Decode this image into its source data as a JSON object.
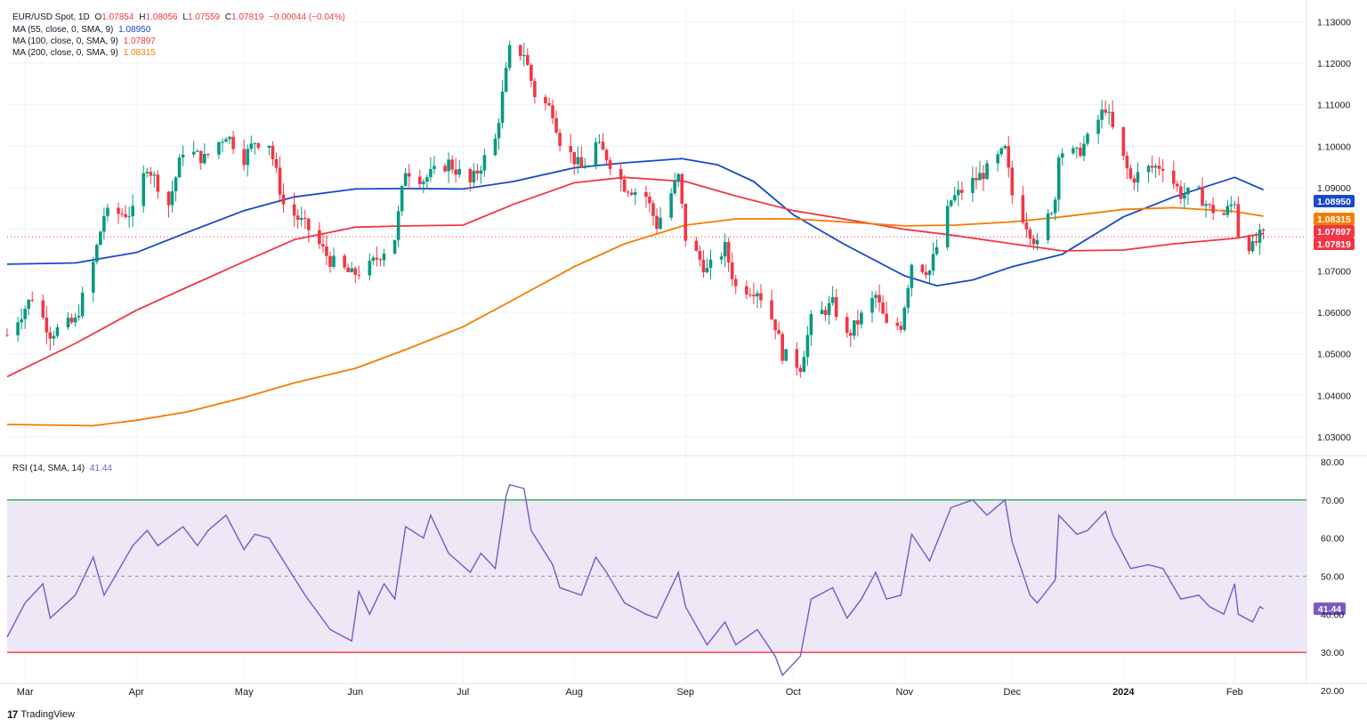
{
  "header": {
    "symbol": "EUR/USD Spot, 1D",
    "o_label": "O",
    "o_value": "1.07854",
    "h_label": "H",
    "h_value": "1.08056",
    "l_label": "L",
    "l_value": "1.07559",
    "c_label": "C",
    "c_value": "1.07819",
    "change": "−0.00044 (−0.04%)"
  },
  "indicators": [
    {
      "label": "MA (55, close, 0, SMA, 9)",
      "value": "1.08950",
      "color": "#1848cc"
    },
    {
      "label": "MA (100, close, 0, SMA, 9)",
      "value": "1.07897",
      "color": "#f23645"
    },
    {
      "label": "MA (200, close, 0, SMA, 9)",
      "value": "1.08315",
      "color": "#f57c00"
    }
  ],
  "rsi": {
    "label": "RSI (14, SMA, 14)",
    "value": "41.44",
    "color": "#7e57c2"
  },
  "branding": {
    "name": "TradingView"
  },
  "colors": {
    "up": "#089981",
    "down": "#f23645",
    "grid": "#f0f3fa",
    "rsi_band": "#ede7f6"
  },
  "chart_data": [
    {
      "type": "candlestick",
      "title": "EUR/USD Spot, 1D",
      "y_ticks": [
        "1.03000",
        "1.04000",
        "1.05000",
        "1.06000",
        "1.07000",
        "1.08000",
        "1.09000",
        "1.10000",
        "1.11000",
        "1.12000",
        "1.13000"
      ],
      "ylim": [
        1.0255,
        1.1335
      ],
      "x_ticks": [
        "Mar",
        "Apr",
        "May",
        "Jun",
        "Jul",
        "Aug",
        "Sep",
        "Oct",
        "Nov",
        "Dec",
        "2024",
        "Feb"
      ],
      "x_tick_dates": [
        "2023-03-01",
        "2023-04-01",
        "2023-05-01",
        "2023-06-01",
        "2023-07-01",
        "2023-08-01",
        "2023-09-01",
        "2023-10-01",
        "2023-11-01",
        "2023-12-01",
        "2024-01-01",
        "2024-02-01"
      ],
      "xlim": [
        "2023-02-24",
        "2024-02-21"
      ],
      "price_badges": [
        {
          "value": "1.08950",
          "color": "#1848cc"
        },
        {
          "value": "1.08315",
          "color": "#f57c00"
        },
        {
          "value": "1.07897",
          "color": "#f23645"
        },
        {
          "value": "1.07819",
          "color": "#f23645"
        }
      ],
      "last_close": 1.07819,
      "close_anchors": [
        [
          "2023-02-24",
          1.0545
        ],
        [
          "2023-03-03",
          1.0638
        ],
        [
          "2023-03-08",
          1.055
        ],
        [
          "2023-03-15",
          1.0578
        ],
        [
          "2023-03-20",
          1.0718
        ],
        [
          "2023-03-23",
          1.0835
        ],
        [
          "2023-03-31",
          1.084
        ],
        [
          "2023-04-04",
          1.0955
        ],
        [
          "2023-04-10",
          1.086
        ],
        [
          "2023-04-14",
          1.0992
        ],
        [
          "2023-04-20",
          1.097
        ],
        [
          "2023-04-26",
          1.103
        ],
        [
          "2023-05-01",
          1.0972
        ],
        [
          "2023-05-04",
          1.1012
        ],
        [
          "2023-05-08",
          1.1008
        ],
        [
          "2023-05-12",
          1.086
        ],
        [
          "2023-05-19",
          1.08
        ],
        [
          "2023-05-25",
          1.0725
        ],
        [
          "2023-05-31",
          1.069
        ],
        [
          "2023-06-05",
          1.071
        ],
        [
          "2023-06-12",
          1.078
        ],
        [
          "2023-06-15",
          1.0945
        ],
        [
          "2023-06-20",
          1.092
        ],
        [
          "2023-06-27",
          1.096
        ],
        [
          "2023-07-03",
          1.091
        ],
        [
          "2023-07-10",
          1.1015
        ],
        [
          "2023-07-14",
          1.123
        ],
        [
          "2023-07-18",
          1.1225
        ],
        [
          "2023-07-21",
          1.1125
        ],
        [
          "2023-07-26",
          1.1085
        ],
        [
          "2023-07-28",
          1.1015
        ],
        [
          "2023-08-03",
          1.0945
        ],
        [
          "2023-08-07",
          1.1005
        ],
        [
          "2023-08-10",
          1.0975
        ],
        [
          "2023-08-15",
          1.0905
        ],
        [
          "2023-08-21",
          1.088
        ],
        [
          "2023-08-24",
          1.081
        ],
        [
          "2023-08-30",
          1.0925
        ],
        [
          "2023-09-01",
          1.078
        ],
        [
          "2023-09-07",
          1.07
        ],
        [
          "2023-09-12",
          1.0755
        ],
        [
          "2023-09-15",
          1.066
        ],
        [
          "2023-09-21",
          1.0655
        ],
        [
          "2023-09-26",
          1.057
        ],
        [
          "2023-09-28",
          1.05
        ],
        [
          "2023-10-03",
          1.047
        ],
        [
          "2023-10-06",
          1.058
        ],
        [
          "2023-10-12",
          1.062
        ],
        [
          "2023-10-16",
          1.054
        ],
        [
          "2023-10-20",
          1.059
        ],
        [
          "2023-10-24",
          1.064
        ],
        [
          "2023-10-27",
          1.0565
        ],
        [
          "2023-10-31",
          1.057
        ],
        [
          "2023-11-03",
          1.072
        ],
        [
          "2023-11-08",
          1.07
        ],
        [
          "2023-11-14",
          1.087
        ],
        [
          "2023-11-20",
          1.0915
        ],
        [
          "2023-11-24",
          1.0942
        ],
        [
          "2023-11-29",
          1.099
        ],
        [
          "2023-12-01",
          1.0883
        ],
        [
          "2023-12-06",
          1.0795
        ],
        [
          "2023-12-08",
          1.076
        ],
        [
          "2023-12-13",
          1.0875
        ],
        [
          "2023-12-14",
          1.099
        ],
        [
          "2023-12-19",
          1.098
        ],
        [
          "2023-12-22",
          1.1015
        ],
        [
          "2023-12-27",
          1.1095
        ],
        [
          "2023-12-29",
          1.104
        ],
        [
          "2024-01-03",
          1.092
        ],
        [
          "2024-01-08",
          1.0946
        ],
        [
          "2024-01-12",
          1.0955
        ],
        [
          "2024-01-17",
          1.0885
        ],
        [
          "2024-01-22",
          1.0885
        ],
        [
          "2024-01-25",
          1.085
        ],
        [
          "2024-01-29",
          1.0835
        ],
        [
          "2024-02-01",
          1.087
        ],
        [
          "2024-02-02",
          1.079
        ],
        [
          "2024-02-06",
          1.0755
        ],
        [
          "2024-02-08",
          1.0782
        ],
        [
          "2024-02-09",
          1.07819
        ]
      ],
      "ma_series": [
        {
          "name": "MA (55, close, 0, SMA, 9)",
          "color": "#1848cc",
          "points": [
            [
              "2023-02-24",
              1.0716
            ],
            [
              "2023-03-15",
              1.0719
            ],
            [
              "2023-04-01",
              1.0744
            ],
            [
              "2023-04-15",
              1.0792
            ],
            [
              "2023-05-01",
              1.0845
            ],
            [
              "2023-05-15",
              1.0878
            ],
            [
              "2023-06-01",
              1.0897
            ],
            [
              "2023-06-15",
              1.0898
            ],
            [
              "2023-07-01",
              1.0897
            ],
            [
              "2023-07-15",
              1.0915
            ],
            [
              "2023-08-01",
              1.0948
            ],
            [
              "2023-08-15",
              1.096
            ],
            [
              "2023-08-31",
              1.097
            ],
            [
              "2023-09-10",
              1.0955
            ],
            [
              "2023-09-20",
              1.0915
            ],
            [
              "2023-10-01",
              1.0835
            ],
            [
              "2023-10-15",
              1.0765
            ],
            [
              "2023-11-01",
              1.0688
            ],
            [
              "2023-11-10",
              1.0664
            ],
            [
              "2023-11-20",
              1.0678
            ],
            [
              "2023-12-01",
              1.071
            ],
            [
              "2023-12-15",
              1.074
            ],
            [
              "2024-01-01",
              1.083
            ],
            [
              "2024-01-15",
              1.0878
            ],
            [
              "2024-02-01",
              1.0925
            ],
            [
              "2024-02-09",
              1.0895
            ]
          ]
        },
        {
          "name": "MA (100, close, 0, SMA, 9)",
          "color": "#f23645",
          "points": [
            [
              "2023-02-24",
              1.0445
            ],
            [
              "2023-03-15",
              1.0525
            ],
            [
              "2023-04-01",
              1.0605
            ],
            [
              "2023-04-15",
              1.066
            ],
            [
              "2023-05-01",
              1.0722
            ],
            [
              "2023-05-15",
              1.0775
            ],
            [
              "2023-06-01",
              1.0805
            ],
            [
              "2023-06-15",
              1.0808
            ],
            [
              "2023-07-01",
              1.081
            ],
            [
              "2023-07-15",
              1.086
            ],
            [
              "2023-08-01",
              1.0912
            ],
            [
              "2023-08-15",
              1.0925
            ],
            [
              "2023-09-01",
              1.0915
            ],
            [
              "2023-09-15",
              1.088
            ],
            [
              "2023-10-01",
              1.0845
            ],
            [
              "2023-10-15",
              1.0825
            ],
            [
              "2023-11-01",
              1.08
            ],
            [
              "2023-11-15",
              1.0785
            ],
            [
              "2023-12-01",
              1.0765
            ],
            [
              "2023-12-15",
              1.0748
            ],
            [
              "2024-01-01",
              1.075
            ],
            [
              "2024-01-15",
              1.0765
            ],
            [
              "2024-02-01",
              1.0778
            ],
            [
              "2024-02-09",
              1.07897
            ]
          ]
        },
        {
          "name": "MA (200, close, 0, SMA, 9)",
          "color": "#f57c00",
          "points": [
            [
              "2023-02-24",
              1.033
            ],
            [
              "2023-03-20",
              1.0327
            ],
            [
              "2023-04-01",
              1.034
            ],
            [
              "2023-04-15",
              1.036
            ],
            [
              "2023-05-01",
              1.0395
            ],
            [
              "2023-05-15",
              1.043
            ],
            [
              "2023-06-01",
              1.0465
            ],
            [
              "2023-06-15",
              1.051
            ],
            [
              "2023-07-01",
              1.0565
            ],
            [
              "2023-07-15",
              1.063
            ],
            [
              "2023-08-01",
              1.071
            ],
            [
              "2023-08-15",
              1.0765
            ],
            [
              "2023-09-01",
              1.081
            ],
            [
              "2023-09-15",
              1.0825
            ],
            [
              "2023-10-01",
              1.0825
            ],
            [
              "2023-10-15",
              1.0818
            ],
            [
              "2023-11-01",
              1.0808
            ],
            [
              "2023-11-15",
              1.081
            ],
            [
              "2023-12-01",
              1.0818
            ],
            [
              "2023-12-15",
              1.083
            ],
            [
              "2024-01-01",
              1.0848
            ],
            [
              "2024-01-15",
              1.0852
            ],
            [
              "2024-02-01",
              1.0843
            ],
            [
              "2024-02-09",
              1.08315
            ]
          ]
        }
      ]
    },
    {
      "type": "line",
      "title": "RSI (14, SMA, 14)",
      "y_ticks": [
        "20.00",
        "30.00",
        "40.00",
        "50.00",
        "60.00",
        "70.00",
        "80.00"
      ],
      "ylim": [
        20,
        80
      ],
      "levels": [
        30,
        50,
        70
      ],
      "last_value": 41.44,
      "points": [
        [
          "2023-02-24",
          34
        ],
        [
          "2023-03-01",
          43
        ],
        [
          "2023-03-06",
          48
        ],
        [
          "2023-03-08",
          39
        ],
        [
          "2023-03-15",
          45
        ],
        [
          "2023-03-20",
          55
        ],
        [
          "2023-03-23",
          45
        ],
        [
          "2023-03-31",
          58
        ],
        [
          "2023-04-04",
          62
        ],
        [
          "2023-04-07",
          58
        ],
        [
          "2023-04-14",
          63
        ],
        [
          "2023-04-18",
          58
        ],
        [
          "2023-04-21",
          62
        ],
        [
          "2023-04-26",
          66
        ],
        [
          "2023-05-01",
          57
        ],
        [
          "2023-05-04",
          61
        ],
        [
          "2023-05-08",
          60
        ],
        [
          "2023-05-12",
          54
        ],
        [
          "2023-05-18",
          45
        ],
        [
          "2023-05-25",
          36
        ],
        [
          "2023-05-31",
          33
        ],
        [
          "2023-06-02",
          46
        ],
        [
          "2023-06-05",
          40
        ],
        [
          "2023-06-09",
          48
        ],
        [
          "2023-06-12",
          44
        ],
        [
          "2023-06-15",
          63
        ],
        [
          "2023-06-20",
          60
        ],
        [
          "2023-06-22",
          66
        ],
        [
          "2023-06-27",
          56
        ],
        [
          "2023-07-03",
          51
        ],
        [
          "2023-07-06",
          56
        ],
        [
          "2023-07-10",
          52
        ],
        [
          "2023-07-13",
          71
        ],
        [
          "2023-07-14",
          74
        ],
        [
          "2023-07-18",
          73
        ],
        [
          "2023-07-20",
          62
        ],
        [
          "2023-07-26",
          53
        ],
        [
          "2023-07-28",
          47
        ],
        [
          "2023-08-03",
          45
        ],
        [
          "2023-08-07",
          55
        ],
        [
          "2023-08-10",
          51
        ],
        [
          "2023-08-15",
          43
        ],
        [
          "2023-08-21",
          40
        ],
        [
          "2023-08-24",
          39
        ],
        [
          "2023-08-30",
          51
        ],
        [
          "2023-09-01",
          42
        ],
        [
          "2023-09-07",
          32
        ],
        [
          "2023-09-12",
          38
        ],
        [
          "2023-09-15",
          32
        ],
        [
          "2023-09-21",
          36
        ],
        [
          "2023-09-26",
          29
        ],
        [
          "2023-09-28",
          24
        ],
        [
          "2023-10-03",
          29
        ],
        [
          "2023-10-06",
          44
        ],
        [
          "2023-10-12",
          47
        ],
        [
          "2023-10-16",
          39
        ],
        [
          "2023-10-20",
          44
        ],
        [
          "2023-10-24",
          51
        ],
        [
          "2023-10-27",
          44
        ],
        [
          "2023-10-31",
          45
        ],
        [
          "2023-11-03",
          61
        ],
        [
          "2023-11-08",
          54
        ],
        [
          "2023-11-14",
          68
        ],
        [
          "2023-11-20",
          70
        ],
        [
          "2023-11-24",
          66
        ],
        [
          "2023-11-29",
          70
        ],
        [
          "2023-12-01",
          59
        ],
        [
          "2023-12-06",
          45
        ],
        [
          "2023-12-08",
          43
        ],
        [
          "2023-12-13",
          49
        ],
        [
          "2023-12-14",
          66
        ],
        [
          "2023-12-19",
          61
        ],
        [
          "2023-12-22",
          62
        ],
        [
          "2023-12-27",
          67
        ],
        [
          "2023-12-29",
          61
        ],
        [
          "2024-01-03",
          52
        ],
        [
          "2024-01-08",
          53
        ],
        [
          "2024-01-12",
          52
        ],
        [
          "2024-01-17",
          44
        ],
        [
          "2024-01-22",
          45
        ],
        [
          "2024-01-25",
          42
        ],
        [
          "2024-01-29",
          40
        ],
        [
          "2024-02-01",
          48
        ],
        [
          "2024-02-02",
          40
        ],
        [
          "2024-02-06",
          38
        ],
        [
          "2024-02-08",
          42
        ],
        [
          "2024-02-09",
          41.44
        ]
      ]
    }
  ]
}
